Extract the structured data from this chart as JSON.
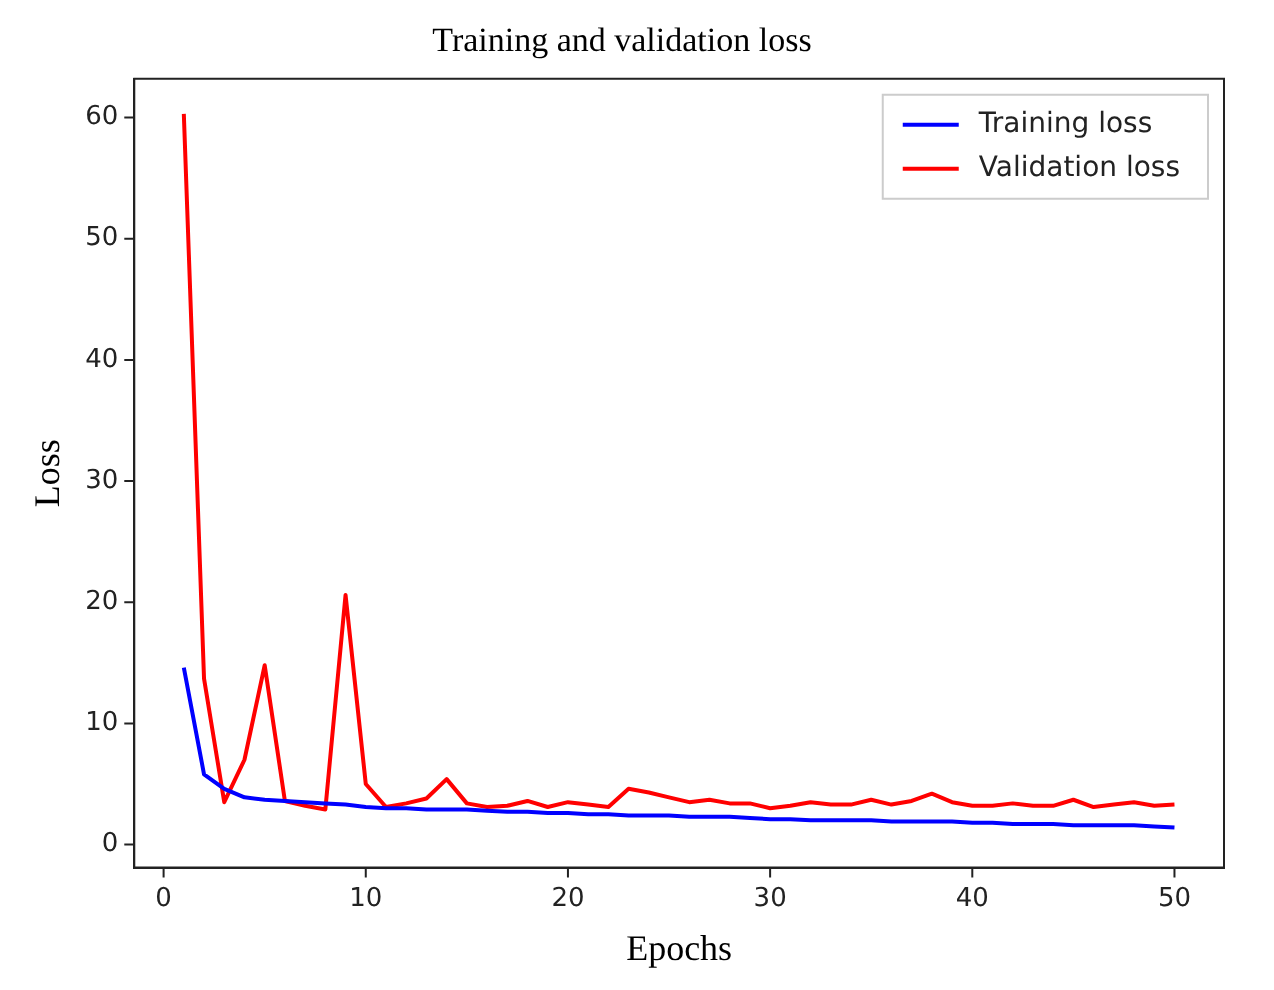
{
  "chart_data": {
    "type": "line",
    "title": "Training and validation loss",
    "xlabel": "Epochs",
    "ylabel": "Loss",
    "x": [
      1,
      2,
      3,
      4,
      5,
      6,
      7,
      8,
      9,
      10,
      11,
      12,
      13,
      14,
      15,
      16,
      17,
      18,
      19,
      20,
      21,
      22,
      23,
      24,
      25,
      26,
      27,
      28,
      29,
      30,
      31,
      32,
      33,
      34,
      35,
      36,
      37,
      38,
      39,
      40,
      41,
      42,
      43,
      44,
      45,
      46,
      47,
      48,
      49,
      50
    ],
    "series": [
      {
        "name": "Training loss",
        "color": "#0000ff",
        "values": [
          14.6,
          5.8,
          4.6,
          3.9,
          3.7,
          3.6,
          3.5,
          3.4,
          3.3,
          3.1,
          3.0,
          3.0,
          2.9,
          2.9,
          2.9,
          2.8,
          2.7,
          2.7,
          2.6,
          2.6,
          2.5,
          2.5,
          2.4,
          2.4,
          2.4,
          2.3,
          2.3,
          2.3,
          2.2,
          2.1,
          2.1,
          2.0,
          2.0,
          2.0,
          2.0,
          1.9,
          1.9,
          1.9,
          1.9,
          1.8,
          1.8,
          1.7,
          1.7,
          1.7,
          1.6,
          1.6,
          1.6,
          1.6,
          1.5,
          1.4
        ]
      },
      {
        "name": "Validation loss",
        "color": "#ff0000",
        "values": [
          60.3,
          13.7,
          3.5,
          7.0,
          14.8,
          3.6,
          3.2,
          2.9,
          20.6,
          5.0,
          3.1,
          3.4,
          3.8,
          5.4,
          3.4,
          3.1,
          3.2,
          3.6,
          3.1,
          3.5,
          3.3,
          3.1,
          4.6,
          4.3,
          3.9,
          3.5,
          3.7,
          3.4,
          3.4,
          3.0,
          3.2,
          3.5,
          3.3,
          3.3,
          3.7,
          3.3,
          3.6,
          4.2,
          3.5,
          3.2,
          3.2,
          3.4,
          3.2,
          3.2,
          3.7,
          3.1,
          3.3,
          3.5,
          3.2,
          3.3
        ]
      }
    ],
    "xlim": [
      -1.45,
      52.45
    ],
    "xticks": [
      0,
      10,
      20,
      30,
      40,
      50
    ],
    "ylim": [
      -1.9,
      63.2
    ],
    "yticks": [
      0,
      10,
      20,
      30,
      40,
      50,
      60
    ],
    "grid": false,
    "legend": "top right",
    "marker": "none",
    "line_style": "solid"
  }
}
